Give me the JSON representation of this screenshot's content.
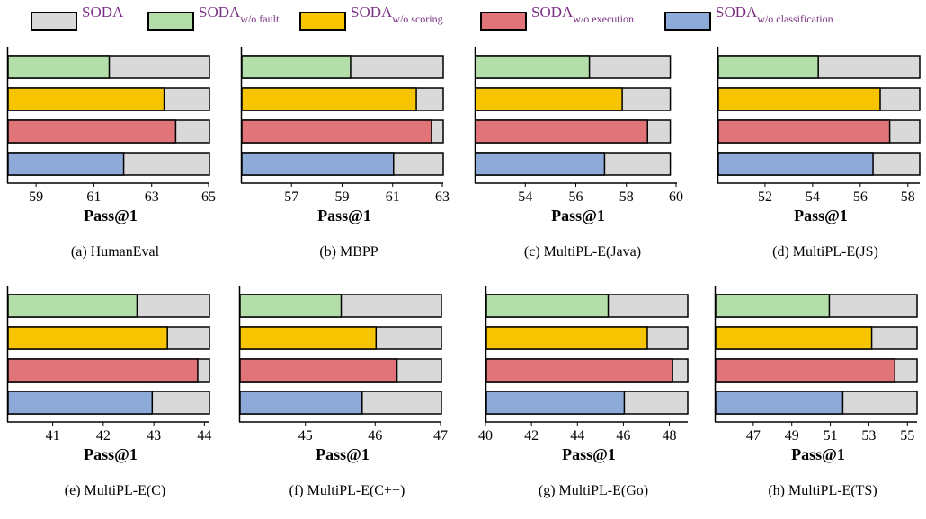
{
  "legend": {
    "series_labels": [
      {
        "main": "SODA",
        "sub": ""
      },
      {
        "main": "SODA",
        "sub": "w/o fault"
      },
      {
        "main": "SODA",
        "sub": "w/o scoring"
      },
      {
        "main": "SODA",
        "sub": "w/o execution"
      },
      {
        "main": "SODA",
        "sub": "w/o classification"
      }
    ]
  },
  "colors": {
    "SODA": "#d9d9d9",
    "w/o fault": "#b3deaa",
    "w/o scoring": "#f7c400",
    "w/o execution": "#e07478",
    "w/o classification": "#8eaad8"
  },
  "chart_data": [
    {
      "type": "bar",
      "orientation": "horizontal",
      "caption": "(a)  HumanEval",
      "xlabel": "Pass@1",
      "xlim": [
        58,
        65
      ],
      "xticks": [
        59,
        61,
        63,
        65
      ],
      "soda": 65,
      "series": [
        {
          "name": "SODA w/o fault",
          "value": 61.5
        },
        {
          "name": "SODA w/o scoring",
          "value": 63.4
        },
        {
          "name": "SODA w/o execution",
          "value": 63.8
        },
        {
          "name": "SODA w/o classification",
          "value": 62
        }
      ]
    },
    {
      "type": "bar",
      "orientation": "horizontal",
      "caption": "(b)  MBPP",
      "xlabel": "Pass@1",
      "xlim": [
        55,
        63
      ],
      "xticks": [
        57,
        59,
        61,
        63
      ],
      "soda": 63,
      "series": [
        {
          "name": "SODA w/o fault",
          "value": 59.3
        },
        {
          "name": "SODA w/o scoring",
          "value": 61.9
        },
        {
          "name": "SODA w/o execution",
          "value": 62.5
        },
        {
          "name": "SODA w/o classification",
          "value": 61
        }
      ]
    },
    {
      "type": "bar",
      "orientation": "horizontal",
      "caption": "(c)  MultiPL-E(Java)",
      "xlabel": "Pass@1",
      "xlim": [
        52,
        60
      ],
      "xticks": [
        54,
        56,
        58,
        60
      ],
      "soda": 59.7,
      "series": [
        {
          "name": "SODA w/o fault",
          "value": 56.5
        },
        {
          "name": "SODA w/o scoring",
          "value": 57.8
        },
        {
          "name": "SODA w/o execution",
          "value": 58.8
        },
        {
          "name": "SODA w/o classification",
          "value": 57.1
        }
      ]
    },
    {
      "type": "bar",
      "orientation": "horizontal",
      "caption": "(d)  MultiPL-E(JS)",
      "xlabel": "Pass@1",
      "xlim": [
        50,
        58.5
      ],
      "xticks": [
        52,
        54,
        56,
        58
      ],
      "soda": 58.5,
      "series": [
        {
          "name": "SODA w/o fault",
          "value": 54.2
        },
        {
          "name": "SODA w/o scoring",
          "value": 56.8
        },
        {
          "name": "SODA w/o execution",
          "value": 57.2
        },
        {
          "name": "SODA w/o classification",
          "value": 56.5
        }
      ]
    },
    {
      "type": "bar",
      "orientation": "horizontal",
      "caption": "(e)  MultiPL-E(C)",
      "xlabel": "Pass@1",
      "xlim": [
        40.1,
        44.1
      ],
      "xticks": [
        41,
        42,
        43,
        44
      ],
      "soda": 44.1,
      "series": [
        {
          "name": "SODA w/o fault",
          "value": 42.65
        },
        {
          "name": "SODA w/o scoring",
          "value": 43.25
        },
        {
          "name": "SODA w/o execution",
          "value": 43.85
        },
        {
          "name": "SODA w/o classification",
          "value": 42.95
        }
      ]
    },
    {
      "type": "bar",
      "orientation": "horizontal",
      "caption": "(f)  MultiPL-E(C++)",
      "xlabel": "Pass@1",
      "xlim": [
        44.05,
        46.95
      ],
      "xticks": [
        45,
        46,
        47
      ],
      "soda": 46.95,
      "series": [
        {
          "name": "SODA w/o fault",
          "value": 45.5
        },
        {
          "name": "SODA w/o scoring",
          "value": 46
        },
        {
          "name": "SODA w/o execution",
          "value": 46.3
        },
        {
          "name": "SODA w/o classification",
          "value": 45.8
        }
      ]
    },
    {
      "type": "bar",
      "orientation": "horizontal",
      "caption": "(g)  MultiPL-E(Go)",
      "xlabel": "Pass@1",
      "xlim": [
        40,
        48.8
      ],
      "xticks": [
        40,
        42,
        44,
        46,
        48
      ],
      "soda": 48.8,
      "series": [
        {
          "name": "SODA w/o fault",
          "value": 45.3
        },
        {
          "name": "SODA w/o scoring",
          "value": 47
        },
        {
          "name": "SODA w/o execution",
          "value": 48.1
        },
        {
          "name": "SODA w/o classification",
          "value": 46
        }
      ]
    },
    {
      "type": "bar",
      "orientation": "horizontal",
      "caption": "(h)  MultiPL-E(TS)",
      "xlabel": "Pass@1",
      "xlim": [
        45,
        55.5
      ],
      "xticks": [
        47,
        49,
        51,
        53,
        55
      ],
      "soda": 55.5,
      "series": [
        {
          "name": "SODA w/o fault",
          "value": 50.9
        },
        {
          "name": "SODA w/o scoring",
          "value": 53.1
        },
        {
          "name": "SODA w/o execution",
          "value": 54.3
        },
        {
          "name": "SODA w/o classification",
          "value": 51.6
        }
      ]
    }
  ]
}
